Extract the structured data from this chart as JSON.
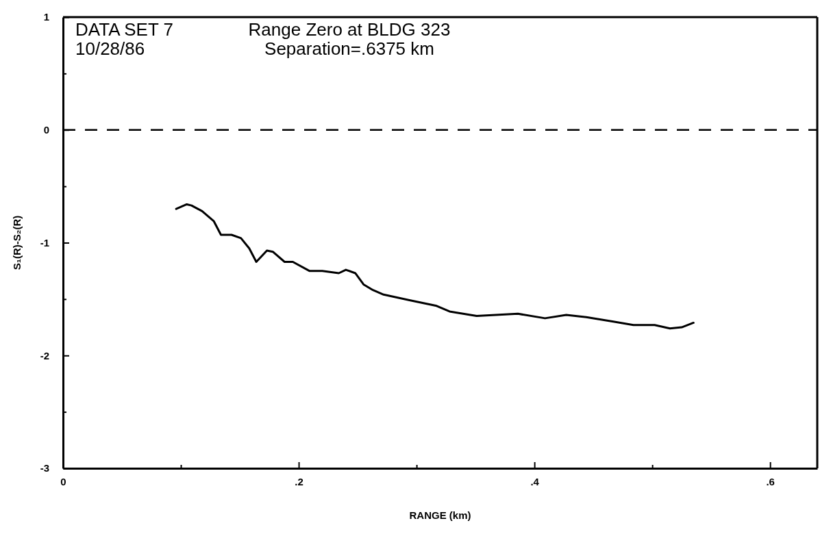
{
  "chart_data": {
    "type": "line",
    "xlabel": "RANGE (km)",
    "ylabel": "S₁(R)-S₂(R)",
    "annotations": [
      "DATA SET 7",
      "10/28/86",
      "Range Zero at BLDG 323",
      "Separation=.6375 km"
    ],
    "xlim": [
      0,
      0.64
    ],
    "xticks": [
      0,
      {
        "value": 0.1,
        "label": null
      },
      {
        "value": 0.2,
        "label": ".2"
      },
      {
        "value": 0.3,
        "label": null
      },
      {
        "value": 0.4,
        "label": ".4"
      },
      {
        "value": 0.5,
        "label": null
      },
      {
        "value": 0.6,
        "label": ".6"
      }
    ],
    "ylim": [
      -3,
      1
    ],
    "yticks": [
      -3,
      {
        "value": -2.5,
        "label": null
      },
      -2,
      {
        "value": -1.5,
        "label": null
      },
      -1,
      {
        "value": -0.5,
        "label": null
      },
      0,
      {
        "value": 0.5,
        "label": null
      },
      1
    ],
    "ref_lines": [
      {
        "axis": "y",
        "value": 0,
        "line_style": "dashed",
        "color": "#000000"
      }
    ],
    "line_style": "solid",
    "marker": "none",
    "series": [
      {
        "color": "#000000",
        "x": [
          0.096,
          0.105,
          0.109,
          0.118,
          0.128,
          0.134,
          0.143,
          0.151,
          0.158,
          0.164,
          0.173,
          0.178,
          0.188,
          0.195,
          0.209,
          0.22,
          0.234,
          0.24,
          0.248,
          0.255,
          0.263,
          0.272,
          0.294,
          0.317,
          0.328,
          0.351,
          0.386,
          0.409,
          0.427,
          0.444,
          0.467,
          0.484,
          0.502,
          0.515,
          0.525,
          0.535
        ],
        "values": [
          -0.7,
          -0.66,
          -0.67,
          -0.72,
          -0.81,
          -0.93,
          -0.93,
          -0.96,
          -1.05,
          -1.17,
          -1.07,
          -1.08,
          -1.17,
          -1.17,
          -1.25,
          -1.25,
          -1.27,
          -1.24,
          -1.27,
          -1.37,
          -1.42,
          -1.46,
          -1.51,
          -1.56,
          -1.61,
          -1.65,
          -1.63,
          -1.67,
          -1.64,
          -1.66,
          -1.7,
          -1.73,
          -1.73,
          -1.76,
          -1.75,
          -1.71
        ]
      }
    ]
  }
}
